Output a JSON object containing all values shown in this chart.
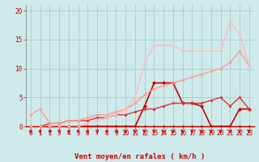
{
  "title": "",
  "xlabel": "Vent moyen/en rafales ( km/h )",
  "ylabel": "",
  "bg_color": "#ceeaea",
  "grid_color": "#aacccc",
  "xlim": [
    -0.5,
    23.5
  ],
  "ylim": [
    0,
    21
  ],
  "yticks": [
    0,
    5,
    10,
    15,
    20
  ],
  "xticks": [
    0,
    1,
    2,
    3,
    4,
    5,
    6,
    7,
    8,
    9,
    10,
    11,
    12,
    13,
    14,
    15,
    16,
    17,
    18,
    19,
    20,
    21,
    22,
    23
  ],
  "lines": [
    {
      "x": [
        0,
        1,
        2,
        3,
        4,
        5,
        6,
        7,
        8,
        9,
        10,
        11,
        12,
        13,
        14,
        15,
        16,
        17,
        18,
        19,
        20,
        21,
        22,
        23
      ],
      "y": [
        0,
        0,
        0,
        0,
        0,
        0,
        0,
        0,
        0,
        0,
        0,
        0,
        0,
        0,
        0,
        0,
        0,
        0,
        0,
        0,
        0,
        0,
        0,
        0
      ],
      "color": "#bb0000",
      "lw": 1.0,
      "marker": "D",
      "ms": 2.0
    },
    {
      "x": [
        0,
        1,
        2,
        3,
        4,
        5,
        6,
        7,
        8,
        9,
        10,
        11,
        12,
        13,
        14,
        15,
        16,
        17,
        18,
        19,
        20,
        21,
        22,
        23
      ],
      "y": [
        0,
        0,
        0,
        0,
        0,
        0,
        0,
        0,
        0,
        0,
        0,
        0,
        3.5,
        7.5,
        7.5,
        7.5,
        4,
        4,
        3.5,
        0,
        0,
        0,
        3,
        3
      ],
      "color": "#cc0000",
      "lw": 1.2,
      "marker": "D",
      "ms": 2.5
    },
    {
      "x": [
        0,
        1,
        2,
        3,
        4,
        5,
        6,
        7,
        8,
        9,
        10,
        11,
        12,
        13,
        14,
        15,
        16,
        17,
        18,
        19,
        20,
        21,
        22,
        23
      ],
      "y": [
        0,
        0,
        0.5,
        0.5,
        1,
        1,
        1,
        1.5,
        1.5,
        2,
        2,
        2.5,
        3,
        3,
        3.5,
        4,
        4,
        4,
        4,
        4.5,
        5,
        3.5,
        5,
        3
      ],
      "color": "#dd3333",
      "lw": 1.0,
      "marker": "D",
      "ms": 2.0
    },
    {
      "x": [
        0,
        1,
        2,
        3,
        4,
        5,
        6,
        7,
        8,
        9,
        10,
        11,
        12,
        13,
        14,
        15,
        16,
        17,
        18,
        19,
        20,
        21,
        22,
        23
      ],
      "y": [
        2,
        3,
        0.5,
        0.5,
        1,
        1,
        1.5,
        2,
        2,
        2.5,
        3,
        4,
        5.5,
        6.5,
        7,
        7.5,
        8,
        8.5,
        9,
        9.5,
        10,
        11,
        13,
        10.5
      ],
      "color": "#ff9999",
      "lw": 1.0,
      "marker": "D",
      "ms": 2.0
    },
    {
      "x": [
        0,
        1,
        2,
        3,
        4,
        5,
        6,
        7,
        8,
        9,
        10,
        11,
        12,
        13,
        14,
        15,
        16,
        17,
        18,
        19,
        20,
        21,
        22,
        23
      ],
      "y": [
        0,
        0,
        0,
        0,
        0,
        0,
        0.5,
        1,
        1.5,
        2,
        3,
        5,
        11,
        14,
        14,
        14,
        13,
        13,
        13,
        13,
        13,
        18,
        16,
        10.5
      ],
      "color": "#ffbbbb",
      "lw": 1.0,
      "marker": "D",
      "ms": 2.0
    }
  ],
  "arrow_color": "#cc0000",
  "xlabel_color": "#cc0000",
  "tick_color": "#cc0000",
  "axis_label_fontsize": 6.5,
  "tick_fontsize": 5.5
}
